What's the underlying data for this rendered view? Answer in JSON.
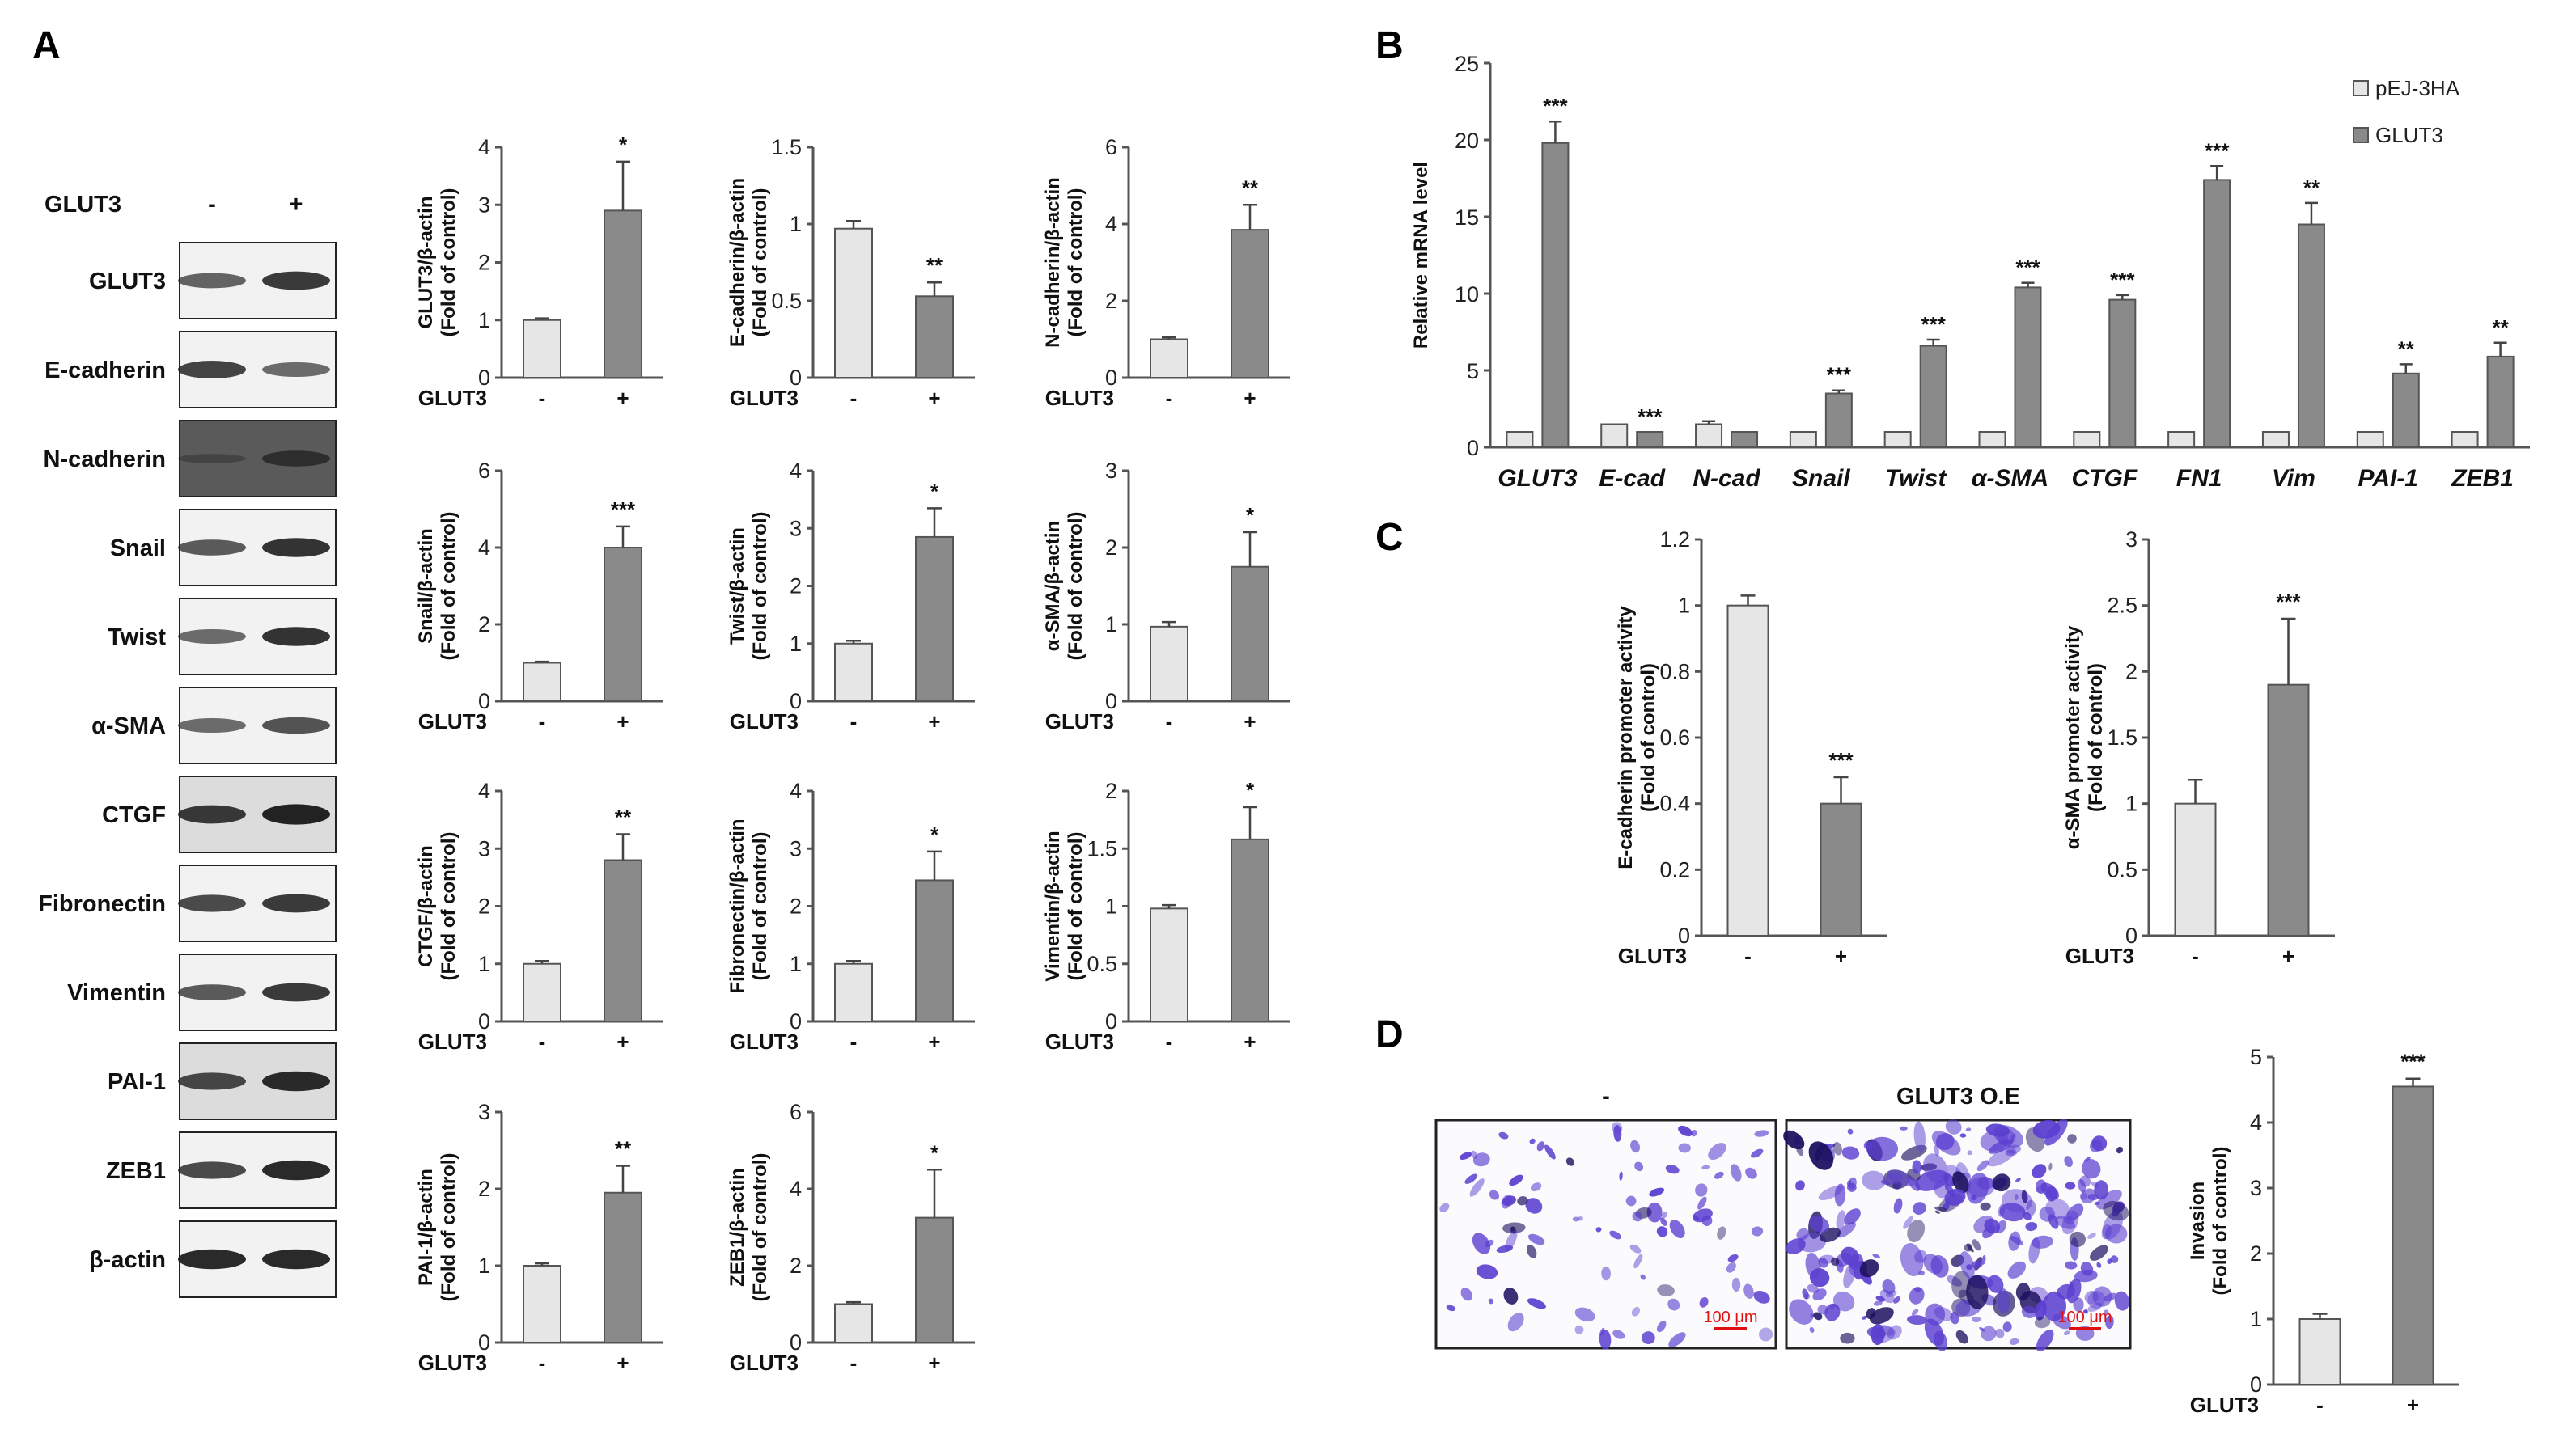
{
  "panels": {
    "a": "A",
    "b": "B",
    "c": "C",
    "d": "D"
  },
  "colors": {
    "control": "#e6e6e6",
    "glut3": "#8a8a8a",
    "bar_edge": "#555555",
    "axis": "#555555",
    "western_band": "#1a1a1a",
    "invasion_stain": "#5b3fd0",
    "scale_bar": "#e01010"
  },
  "western_blot": {
    "header_label": "GLUT3",
    "lanes": [
      "-",
      "+"
    ],
    "rows": [
      {
        "label": "GLUT3",
        "band_intensity": [
          0.55,
          0.8
        ],
        "background": "light"
      },
      {
        "label": "E-cadherin",
        "band_intensity": [
          0.75,
          0.5
        ],
        "background": "light"
      },
      {
        "label": "N-cadherin",
        "band_intensity": [
          0.1,
          0.6
        ],
        "background": "dark"
      },
      {
        "label": "Snail",
        "band_intensity": [
          0.6,
          0.85
        ],
        "background": "light"
      },
      {
        "label": "Twist",
        "band_intensity": [
          0.5,
          0.85
        ],
        "background": "light"
      },
      {
        "label": "α-SMA",
        "band_intensity": [
          0.5,
          0.65
        ],
        "background": "light"
      },
      {
        "label": "CTGF",
        "band_intensity": [
          0.8,
          0.95
        ],
        "background": "medium"
      },
      {
        "label": "Fibronectin",
        "band_intensity": [
          0.7,
          0.8
        ],
        "background": "light"
      },
      {
        "label": "Vimentin",
        "band_intensity": [
          0.6,
          0.8
        ],
        "background": "light"
      },
      {
        "label": "PAI-1",
        "band_intensity": [
          0.7,
          0.9
        ],
        "background": "medium"
      },
      {
        "label": "ZEB1",
        "band_intensity": [
          0.7,
          0.9
        ],
        "background": "light"
      },
      {
        "label": "β-actin",
        "band_intensity": [
          0.9,
          0.9
        ],
        "background": "light"
      }
    ]
  },
  "chart_data": [
    {
      "id": "a_glut3",
      "type": "bar",
      "categories": [
        "-",
        "+"
      ],
      "group_label": "GLUT3",
      "values": [
        1,
        2.9
      ],
      "errors": [
        0.03,
        0.85
      ],
      "sig": "*",
      "ylabel": [
        "GLUT3/β-actin",
        "(Fold of control)"
      ],
      "ylim": [
        0,
        4
      ],
      "yticks": [
        "0",
        "1",
        "2",
        "3",
        "4"
      ]
    },
    {
      "id": "a_ecad",
      "type": "bar",
      "categories": [
        "-",
        "+"
      ],
      "group_label": "GLUT3",
      "values": [
        0.97,
        0.53
      ],
      "errors": [
        0.05,
        0.09
      ],
      "sig": "**",
      "ylabel": [
        "E-cadherin/β-actin",
        "(Fold of control)"
      ],
      "ylim": [
        0,
        1.5
      ],
      "yticks": [
        "0",
        "0.5",
        "1",
        "1.5"
      ]
    },
    {
      "id": "a_ncad",
      "type": "bar",
      "categories": [
        "-",
        "+"
      ],
      "group_label": "GLUT3",
      "values": [
        1,
        3.85
      ],
      "errors": [
        0.05,
        0.65
      ],
      "sig": "**",
      "ylabel": [
        "N-cadherin/β-actin",
        "(Fold of control)"
      ],
      "ylim": [
        0,
        6
      ],
      "yticks": [
        "0",
        "2",
        "4",
        "6"
      ]
    },
    {
      "id": "a_snail",
      "type": "bar",
      "categories": [
        "-",
        "+"
      ],
      "group_label": "GLUT3",
      "values": [
        1,
        4
      ],
      "errors": [
        0.03,
        0.55
      ],
      "sig": "***",
      "ylabel": [
        "Snail/β-actin",
        "(Fold of control)"
      ],
      "ylim": [
        0,
        6
      ],
      "yticks": [
        "0",
        "2",
        "4",
        "6"
      ]
    },
    {
      "id": "a_twist",
      "type": "bar",
      "categories": [
        "-",
        "+"
      ],
      "group_label": "GLUT3",
      "values": [
        1,
        2.85
      ],
      "errors": [
        0.05,
        0.5
      ],
      "sig": "*",
      "ylabel": [
        "Twist/β-actin",
        "(Fold of control)"
      ],
      "ylim": [
        0,
        4
      ],
      "yticks": [
        "0",
        "1",
        "2",
        "3",
        "4"
      ]
    },
    {
      "id": "a_asma",
      "type": "bar",
      "categories": [
        "-",
        "+"
      ],
      "group_label": "GLUT3",
      "values": [
        0.97,
        1.75
      ],
      "errors": [
        0.06,
        0.45
      ],
      "sig": "*",
      "ylabel": [
        "α-SMA/β-actin",
        "(Fold of control)"
      ],
      "ylim": [
        0,
        3
      ],
      "yticks": [
        "0",
        "1",
        "2",
        "3"
      ]
    },
    {
      "id": "a_ctgf",
      "type": "bar",
      "categories": [
        "-",
        "+"
      ],
      "group_label": "GLUT3",
      "values": [
        1,
        2.8
      ],
      "errors": [
        0.05,
        0.45
      ],
      "sig": "**",
      "ylabel": [
        "CTGF/β-actin",
        "(Fold of control)"
      ],
      "ylim": [
        0,
        4
      ],
      "yticks": [
        "0",
        "1",
        "2",
        "3",
        "4"
      ]
    },
    {
      "id": "a_fn",
      "type": "bar",
      "categories": [
        "-",
        "+"
      ],
      "group_label": "GLUT3",
      "values": [
        1,
        2.45
      ],
      "errors": [
        0.05,
        0.5
      ],
      "sig": "*",
      "ylabel": [
        "Fibronectin/β-actin",
        "(Fold of control)"
      ],
      "ylim": [
        0,
        4
      ],
      "yticks": [
        "0",
        "1",
        "2",
        "3",
        "4"
      ]
    },
    {
      "id": "a_vim",
      "type": "bar",
      "categories": [
        "-",
        "+"
      ],
      "group_label": "GLUT3",
      "values": [
        0.98,
        1.58
      ],
      "errors": [
        0.03,
        0.28
      ],
      "sig": "*",
      "ylabel": [
        "Vimentin/β-actin",
        "(Fold of control)"
      ],
      "ylim": [
        0,
        2
      ],
      "yticks": [
        "0",
        "0.5",
        "1",
        "1.5",
        "2"
      ]
    },
    {
      "id": "a_pai1",
      "type": "bar",
      "categories": [
        "-",
        "+"
      ],
      "group_label": "GLUT3",
      "values": [
        1,
        1.95
      ],
      "errors": [
        0.03,
        0.35
      ],
      "sig": "**",
      "ylabel": [
        "PAI-1/β-actin",
        "(Fold of control)"
      ],
      "ylim": [
        0,
        3
      ],
      "yticks": [
        "0",
        "1",
        "2",
        "3"
      ]
    },
    {
      "id": "a_zeb1",
      "type": "bar",
      "categories": [
        "-",
        "+"
      ],
      "group_label": "GLUT3",
      "values": [
        1,
        3.25
      ],
      "errors": [
        0.05,
        1.25
      ],
      "sig": "*",
      "ylabel": [
        "ZEB1/β-actin",
        "(Fold of control)"
      ],
      "ylim": [
        0,
        6
      ],
      "yticks": [
        "0",
        "2",
        "4",
        "6"
      ]
    },
    {
      "id": "b",
      "type": "bar",
      "categories": [
        "GLUT3",
        "E-cad",
        "N-cad",
        "Snail",
        "Twist",
        "α-SMA",
        "CTGF",
        "FN1",
        "Vim",
        "PAI-1",
        "ZEB1"
      ],
      "series": [
        {
          "name": "pEJ-3HA",
          "values": [
            1,
            1.5,
            1.5,
            1,
            1,
            1,
            1,
            1,
            1,
            1,
            1
          ],
          "errors": [
            0,
            0,
            0.2,
            0,
            0,
            0,
            0,
            0,
            0,
            0,
            0
          ]
        },
        {
          "name": "GLUT3",
          "values": [
            19.8,
            1,
            1,
            3.5,
            6.6,
            10.4,
            9.6,
            17.4,
            14.5,
            4.8,
            5.9
          ],
          "errors": [
            1.4,
            0,
            0,
            0.2,
            0.4,
            0.3,
            0.3,
            0.9,
            1.4,
            0.6,
            0.9
          ]
        }
      ],
      "sig": [
        "***",
        "***",
        "",
        "***",
        "***",
        "***",
        "***",
        "***",
        "**",
        "**",
        "**"
      ],
      "ylabel": "Relative mRNA level",
      "ylim": [
        0,
        25
      ],
      "yticks": [
        "0",
        "5",
        "10",
        "15",
        "20",
        "25"
      ],
      "legend": [
        "pEJ-3HA",
        "GLUT3"
      ]
    },
    {
      "id": "c_ecad",
      "type": "bar",
      "categories": [
        "-",
        "+"
      ],
      "group_label": "GLUT3",
      "values": [
        1,
        0.4
      ],
      "errors": [
        0.03,
        0.08
      ],
      "sig": "***",
      "ylabel": [
        "E-cadherin promoter activity",
        "(Fold of control)"
      ],
      "ylim": [
        0,
        1.2
      ],
      "yticks": [
        "0",
        "0.2",
        "0.4",
        "0.6",
        "0.8",
        "1",
        "1.2"
      ]
    },
    {
      "id": "c_asma",
      "type": "bar",
      "categories": [
        "-",
        "+"
      ],
      "group_label": "GLUT3",
      "values": [
        1,
        1.9
      ],
      "errors": [
        0.18,
        0.5
      ],
      "sig": "***",
      "ylabel": [
        "α-SMA promoter activity",
        "(Fold of control)"
      ],
      "ylim": [
        0,
        3
      ],
      "yticks": [
        "0",
        "0.5",
        "1",
        "1.5",
        "2",
        "2.5",
        "3"
      ]
    },
    {
      "id": "d_inv",
      "type": "bar",
      "categories": [
        "-",
        "+"
      ],
      "group_label": "GLUT3",
      "values": [
        1,
        4.55
      ],
      "errors": [
        0.08,
        0.12
      ],
      "sig": "***",
      "ylabel": [
        "Invasion",
        "(Fold of control)"
      ],
      "ylim": [
        0,
        5
      ],
      "yticks": [
        "0",
        "1",
        "2",
        "3",
        "4",
        "5"
      ]
    }
  ],
  "invasion_images": [
    {
      "label": "-",
      "scale_bar": "100 μm",
      "density": 0.35
    },
    {
      "label": "GLUT3 O.E",
      "scale_bar": "100 μm",
      "density": 1.0
    }
  ]
}
